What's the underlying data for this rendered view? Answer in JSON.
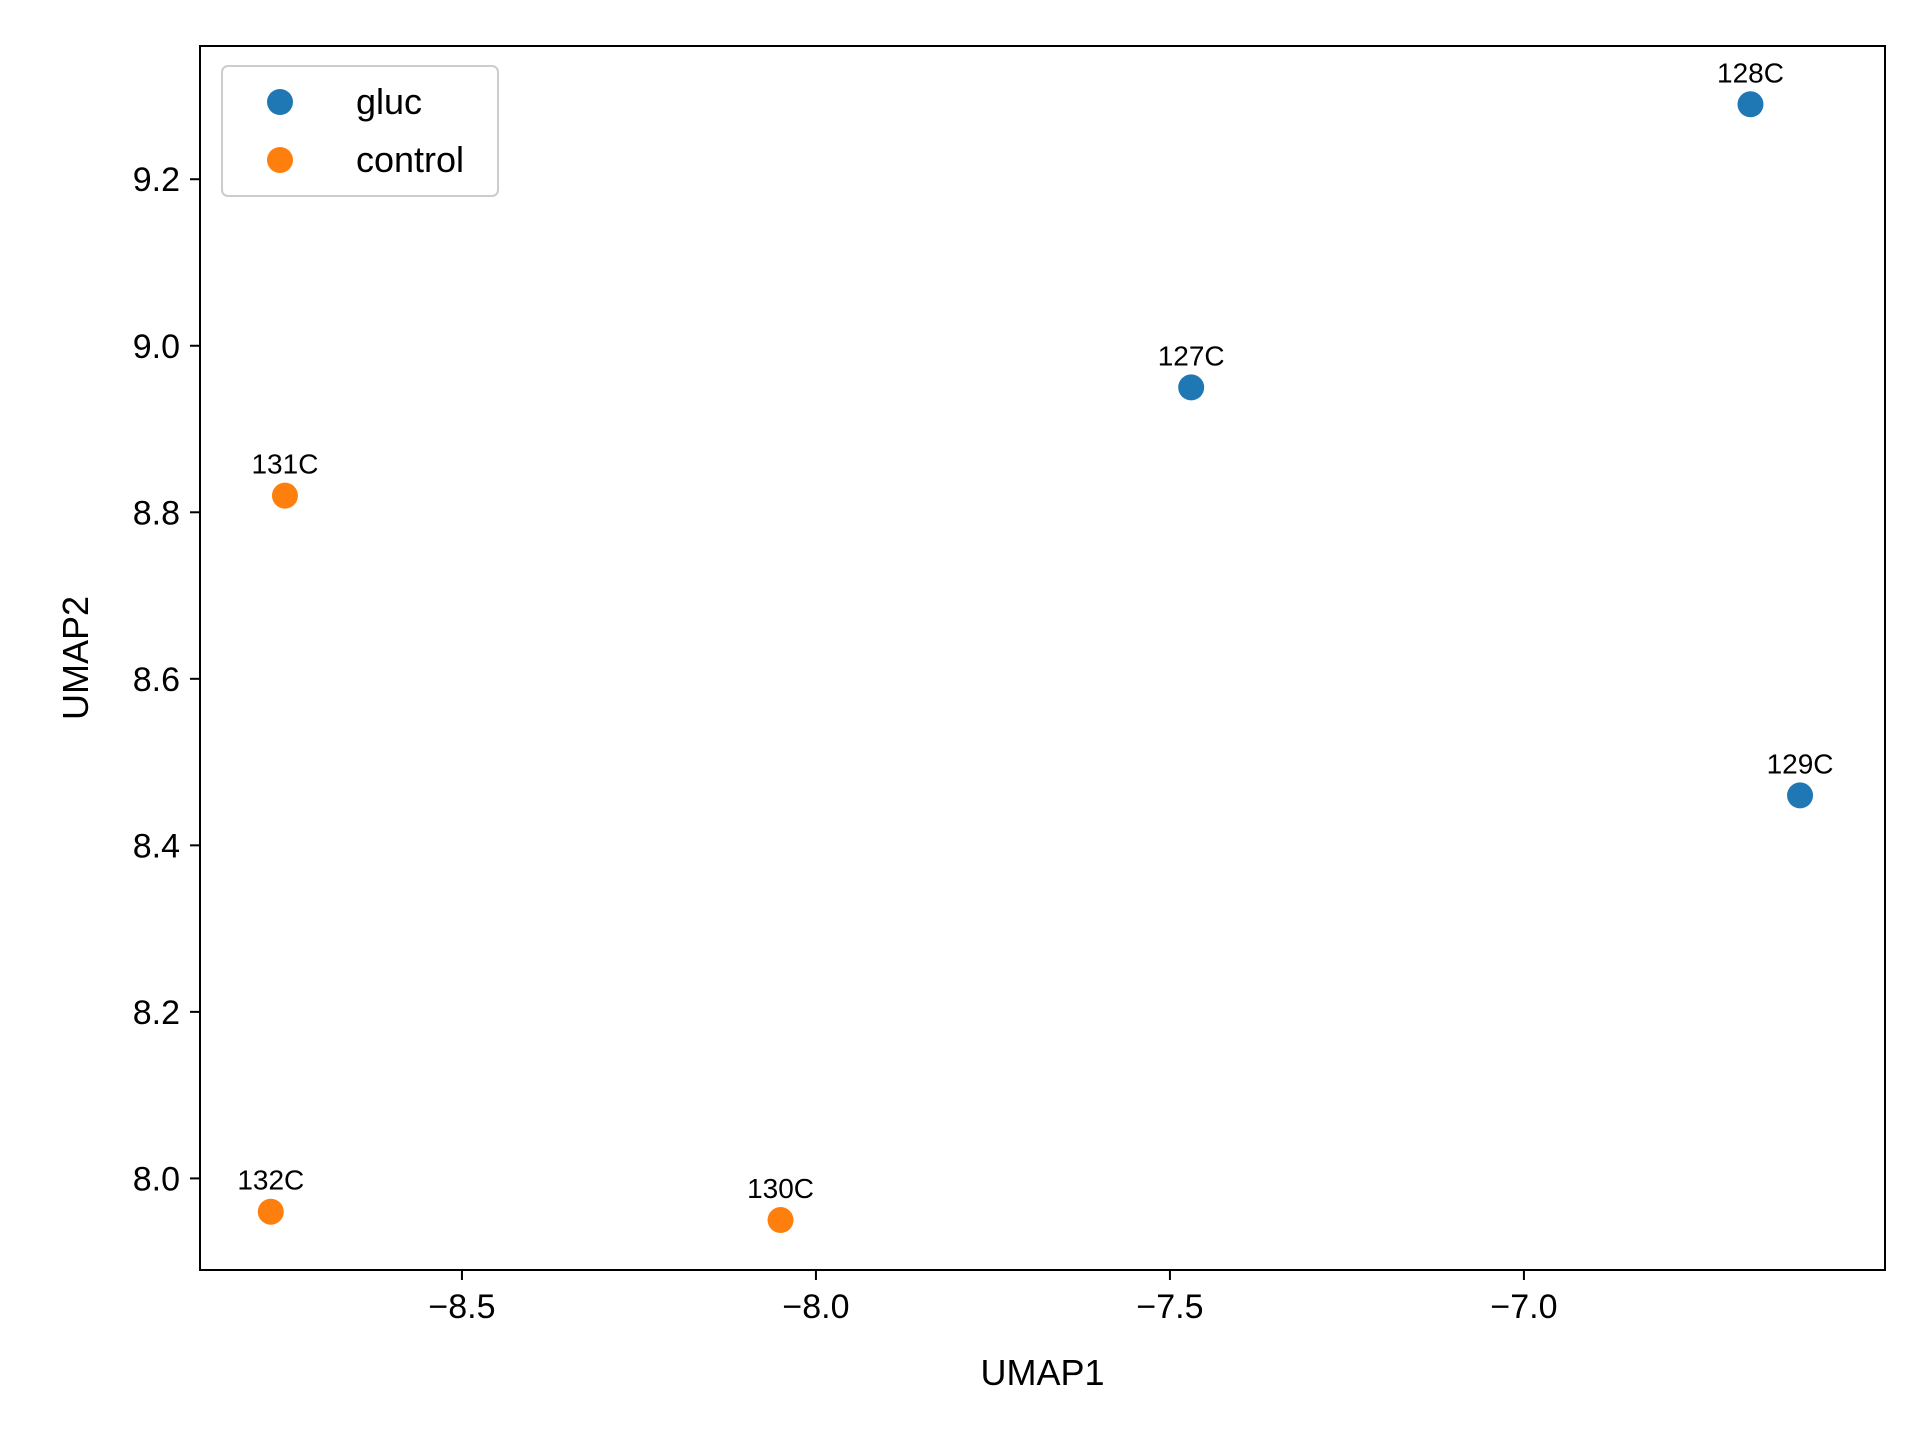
{
  "chart_data": {
    "type": "scatter",
    "title": "",
    "xlabel": "UMAP1",
    "ylabel": "UMAP2",
    "xlim": [
      -8.87,
      -6.49
    ],
    "ylim": [
      7.89,
      9.36
    ],
    "xticks": [
      -8.5,
      -8.0,
      -7.5,
      -7.0
    ],
    "xtick_labels": [
      "−8.5",
      "−8.0",
      "−7.5",
      "−7.0"
    ],
    "yticks": [
      8.0,
      8.2,
      8.4,
      8.6,
      8.8,
      9.0,
      9.2
    ],
    "ytick_labels": [
      "8.0",
      "8.2",
      "8.4",
      "8.6",
      "8.8",
      "9.0",
      "9.2"
    ],
    "grid": false,
    "legend_position": "top-left",
    "series": [
      {
        "name": "gluc",
        "color": "#1f77b4",
        "points": [
          {
            "label": "127C",
            "x": -7.47,
            "y": 8.95
          },
          {
            "label": "128C",
            "x": -6.68,
            "y": 9.29
          },
          {
            "label": "129C",
            "x": -6.61,
            "y": 8.46
          }
        ]
      },
      {
        "name": "control",
        "color": "#ff7f0e",
        "points": [
          {
            "label": "130C",
            "x": -8.05,
            "y": 7.95
          },
          {
            "label": "131C",
            "x": -8.75,
            "y": 8.82
          },
          {
            "label": "132C",
            "x": -8.77,
            "y": 7.96
          }
        ]
      }
    ]
  }
}
